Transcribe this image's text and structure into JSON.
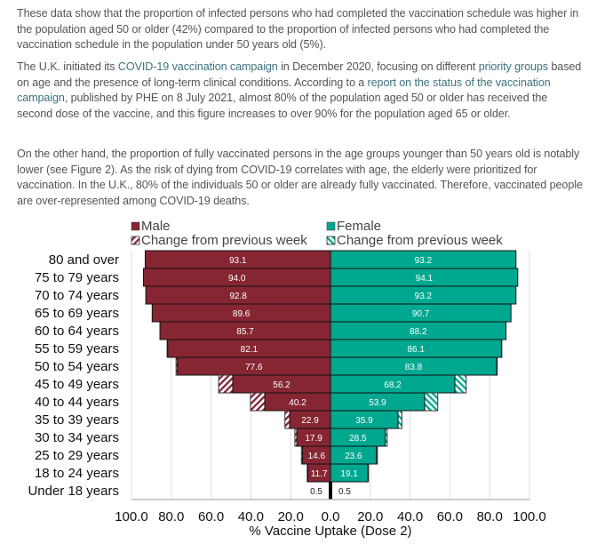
{
  "paragraphs": [
    {
      "parts": [
        {
          "t": "These data show that the proportion of infected persons who had completed the vaccination schedule was higher in the population aged 50 or older (42%) compared to the proportion of infected persons who had completed the vaccination schedule in the population under 50 years old (5%)."
        }
      ]
    },
    {
      "parts": [
        {
          "t": "The U.K. initiated its "
        },
        {
          "t": "COVID-19 vaccination campaign",
          "link": true
        },
        {
          "t": " in December 2020, focusing on different "
        },
        {
          "t": "priority groups",
          "link": true
        },
        {
          "t": " based on age and the presence of long-term clinical conditions. According to a "
        },
        {
          "t": "report on the status of the vaccination campaign",
          "link": true
        },
        {
          "t": ", published by PHE on 8 July 2021, almost 80% of the population aged 50 or older has received the second dose of the vaccine, and this figure increases to over 90% for the population aged 65 or older."
        }
      ]
    },
    {
      "parts": [
        {
          "t": "On the other hand, the proportion of fully vaccinated persons in the age groups younger than 50 years old is notably lower (see Figure 2). As the risk of dying from COVID-19 correlates with age, the elderly were prioritized for vaccination. In the U.K., 80% of the individuals 50 or older are already fully vaccinated. Therefore, vaccinated people are over-represented among COVID-19 deaths."
        }
      ]
    }
  ],
  "chart_data": {
    "type": "bar",
    "orientation": "horizontal-population-pyramid",
    "categories": [
      "80 and over",
      "75 to 79 years",
      "70 to 74 years",
      "65 to 69 years",
      "60 to 64 years",
      "55 to 59 years",
      "50 to 54 years",
      "45 to 49 years",
      "40 to 44 years",
      "35 to 39 years",
      "30 to 34 years",
      "25 to 29 years",
      "18 to 24 years",
      "Under 18 years"
    ],
    "series": [
      {
        "name": "Male",
        "color": "#862633",
        "values": [
          93.1,
          94.0,
          92.8,
          89.6,
          85.7,
          82.1,
          77.6,
          56.2,
          40.2,
          22.9,
          17.9,
          14.6,
          11.7,
          0.5
        ],
        "change_name": "Change from previous week",
        "change": [
          0,
          0,
          0,
          0,
          0,
          0.3,
          0.7,
          7.1,
          7.2,
          2.4,
          1.0,
          0.6,
          0.3,
          0
        ]
      },
      {
        "name": "Female",
        "color": "#00a88f",
        "values": [
          93.2,
          94.1,
          93.2,
          90.7,
          88.2,
          86.1,
          83.8,
          68.2,
          53.9,
          35.9,
          28.5,
          23.6,
          19.1,
          0.5
        ],
        "change_name": "Change from previous week",
        "change": [
          0,
          0,
          0,
          0,
          0,
          0.2,
          0.3,
          5.7,
          6.6,
          2.0,
          1.0,
          0.5,
          0.3,
          0
        ]
      }
    ],
    "xticks": [
      "100.0",
      "80.0",
      "60.0",
      "40.0",
      "20.0",
      "0.0",
      "20.0",
      "40.0",
      "60.0",
      "80.0",
      "100.0"
    ],
    "xlabel": "% Vaccine Uptake (Dose 2)",
    "xlim": [
      -100,
      100
    ],
    "grid": true,
    "legend": "top"
  }
}
